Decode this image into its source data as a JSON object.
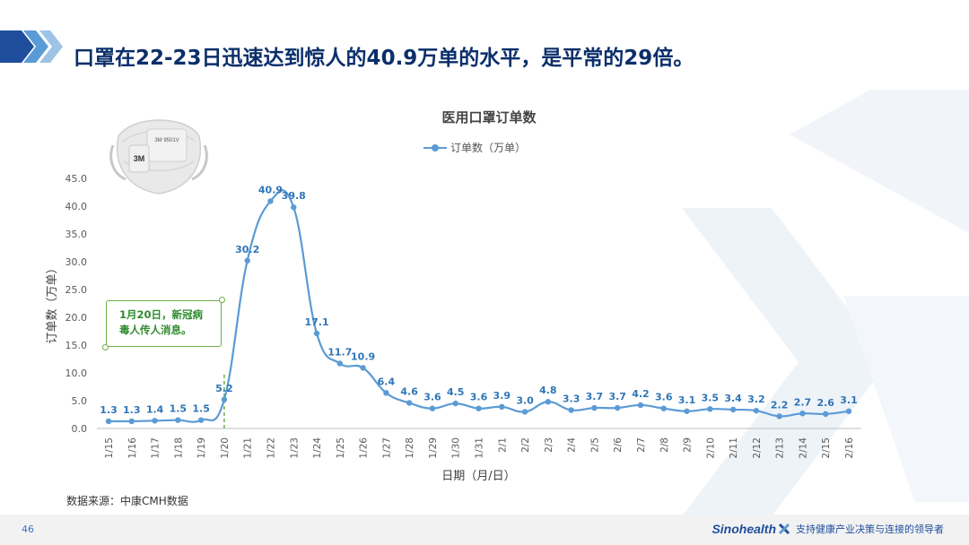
{
  "header": {
    "title": "口罩在22-23日迅速达到惊人的40.9万单的水平，是平常的29倍。"
  },
  "chart_data": {
    "type": "line",
    "title": "医用口罩订单数",
    "xlabel": "日期（月/日）",
    "ylabel": "订单数（万单）",
    "ylim": [
      0,
      45
    ],
    "yticks": [
      "0.0",
      "5.0",
      "10.0",
      "15.0",
      "20.0",
      "25.0",
      "30.0",
      "35.0",
      "40.0",
      "45.0"
    ],
    "grid": false,
    "legend": "top-center",
    "categories": [
      "1/15",
      "1/16",
      "1/17",
      "1/18",
      "1/19",
      "1/20",
      "1/21",
      "1/22",
      "1/23",
      "1/24",
      "1/25",
      "1/26",
      "1/27",
      "1/28",
      "1/29",
      "1/30",
      "1/31",
      "2/1",
      "2/2",
      "2/3",
      "2/4",
      "2/5",
      "2/6",
      "2/7",
      "2/8",
      "2/9",
      "2/10",
      "2/11",
      "2/12",
      "2/13",
      "2/14",
      "2/15",
      "2/16"
    ],
    "series": [
      {
        "name": "订单数（万单）",
        "color": "#5b9bd5",
        "values": [
          1.3,
          1.3,
          1.4,
          1.5,
          1.5,
          5.2,
          30.2,
          40.9,
          39.8,
          17.1,
          11.7,
          10.9,
          6.4,
          4.6,
          3.6,
          4.5,
          3.6,
          3.9,
          3.0,
          4.8,
          3.3,
          3.7,
          3.7,
          4.2,
          3.6,
          3.1,
          3.5,
          3.4,
          3.2,
          2.2,
          2.7,
          2.6,
          3.1
        ]
      }
    ],
    "annotations": [
      {
        "x": "1/20",
        "text": "1月20日，新冠病毒人传人消息。",
        "color": "#70ad47"
      }
    ]
  },
  "callout": {
    "line1": "1月20日，新冠病",
    "line2": "毒人传人消息。"
  },
  "mask_illustration": {
    "label": "3M 9501V",
    "logo": "3M"
  },
  "source_note": "数据来源：中康CMH数据",
  "footer": {
    "page_number": "46",
    "brand": "Sinohealth",
    "slogan": "支持健康产业决策与连接的领导者"
  },
  "colors": {
    "title": "#0b2f6b",
    "series": "#5b9bd5",
    "label": "#2e75b6",
    "annotation": "#70ad47",
    "header_arrow_dark": "#1f4e9c",
    "header_arrow_light": "#9dc3e6"
  }
}
